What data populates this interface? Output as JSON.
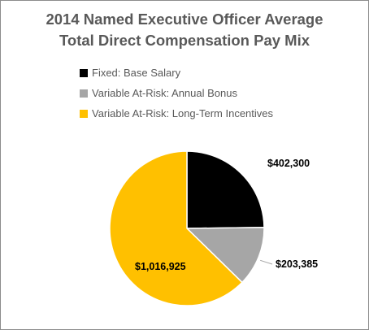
{
  "chart_data": {
    "type": "pie",
    "title": [
      "2014 Named Executive Officer Average",
      "Total Direct Compensation  Pay Mix"
    ],
    "slices": [
      {
        "name": "Fixed: Base Salary",
        "value": 402300,
        "label": "$402,300",
        "color": "#000000"
      },
      {
        "name": "Variable At-Risk: Annual Bonus",
        "value": 203385,
        "label": "$203,385",
        "color": "#a6a6a6"
      },
      {
        "name": "Variable At-Risk: Long-Term Incentives",
        "value": 1016925,
        "label": "$1,016,925",
        "color": "#ffc000"
      }
    ],
    "legend_position": "top",
    "start_angle_deg": 0,
    "direction": "clockwise"
  }
}
